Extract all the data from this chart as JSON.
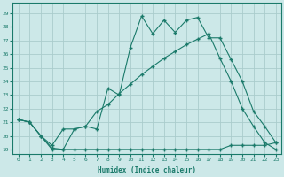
{
  "xlabel": "Humidex (Indice chaleur)",
  "ylabel": "",
  "bg_color": "#cce8e8",
  "grid_color": "#aacccc",
  "line_color": "#1a7a6a",
  "xlim": [
    -0.5,
    23.5
  ],
  "ylim": [
    18.7,
    29.8
  ],
  "xticks": [
    0,
    1,
    2,
    3,
    4,
    5,
    6,
    7,
    8,
    9,
    10,
    11,
    12,
    13,
    14,
    15,
    16,
    17,
    18,
    19,
    20,
    21,
    22,
    23
  ],
  "yticks": [
    19,
    20,
    21,
    22,
    23,
    24,
    25,
    26,
    27,
    28,
    29
  ],
  "line1_x": [
    0,
    1,
    2,
    3,
    4,
    5,
    6,
    7,
    8,
    9,
    10,
    11,
    12,
    13,
    14,
    15,
    16,
    17,
    18,
    19,
    20,
    21,
    22,
    23
  ],
  "line1_y": [
    21.2,
    21.0,
    20.0,
    19.1,
    19.0,
    20.5,
    20.7,
    20.5,
    23.5,
    23.0,
    26.5,
    28.8,
    27.5,
    28.5,
    27.6,
    28.5,
    28.7,
    27.2,
    27.2,
    25.6,
    24.0,
    21.8,
    20.7,
    19.5
  ],
  "line2_x": [
    0,
    1,
    2,
    3,
    4,
    5,
    6,
    7,
    8,
    9,
    10,
    11,
    12,
    13,
    14,
    15,
    16,
    17,
    18,
    19,
    20,
    21,
    22,
    23
  ],
  "line2_y": [
    21.2,
    21.0,
    20.0,
    19.0,
    19.0,
    19.0,
    19.0,
    19.0,
    19.0,
    19.0,
    19.0,
    19.0,
    19.0,
    19.0,
    19.0,
    19.0,
    19.0,
    19.0,
    19.0,
    19.3,
    19.3,
    19.3,
    19.3,
    19.5
  ],
  "line3_x": [
    0,
    1,
    2,
    3,
    4,
    5,
    6,
    7,
    8,
    9,
    10,
    11,
    12,
    13,
    14,
    15,
    16,
    17,
    18,
    19,
    20,
    21,
    22,
    23
  ],
  "line3_y": [
    21.2,
    21.0,
    20.0,
    19.3,
    20.5,
    20.5,
    20.7,
    21.8,
    22.3,
    23.1,
    23.8,
    24.5,
    25.1,
    25.7,
    26.2,
    26.7,
    27.1,
    27.5,
    25.7,
    24.0,
    22.0,
    20.7,
    19.5,
    19.0
  ]
}
